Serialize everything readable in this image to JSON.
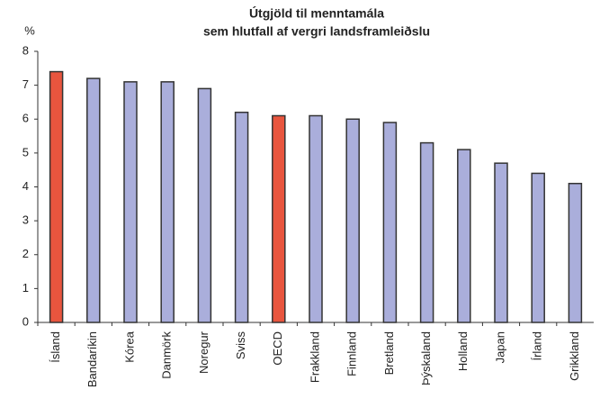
{
  "chart_data": {
    "type": "bar",
    "title_lines": [
      "Útgjöld til menntamála",
      "sem hlutfall af vergri landsframleiðslu"
    ],
    "y_label": "%",
    "categories": [
      "Ísland",
      "Bandaríkin",
      "Kórea",
      "Danmörk",
      "Noregur",
      "Sviss",
      "OECD",
      "Frakkland",
      "Finnland",
      "Bretland",
      "Þýskaland",
      "Holland",
      "Japan",
      "Írland",
      "Grikkland"
    ],
    "values": [
      7.4,
      7.2,
      7.1,
      7.1,
      6.9,
      6.2,
      6.1,
      6.1,
      6.0,
      5.9,
      5.3,
      5.1,
      4.7,
      4.4,
      4.1
    ],
    "colors": [
      "#e8553e",
      "#aaaedb",
      "#aaaedb",
      "#aaaedb",
      "#aaaedb",
      "#aaaedb",
      "#e8553e",
      "#aaaedb",
      "#aaaedb",
      "#aaaedb",
      "#aaaedb",
      "#aaaedb",
      "#aaaedb",
      "#aaaedb",
      "#aaaedb"
    ],
    "ylim": [
      0,
      8
    ],
    "yticks": [
      0,
      1,
      2,
      3,
      4,
      5,
      6,
      7,
      8
    ],
    "grid": false
  }
}
